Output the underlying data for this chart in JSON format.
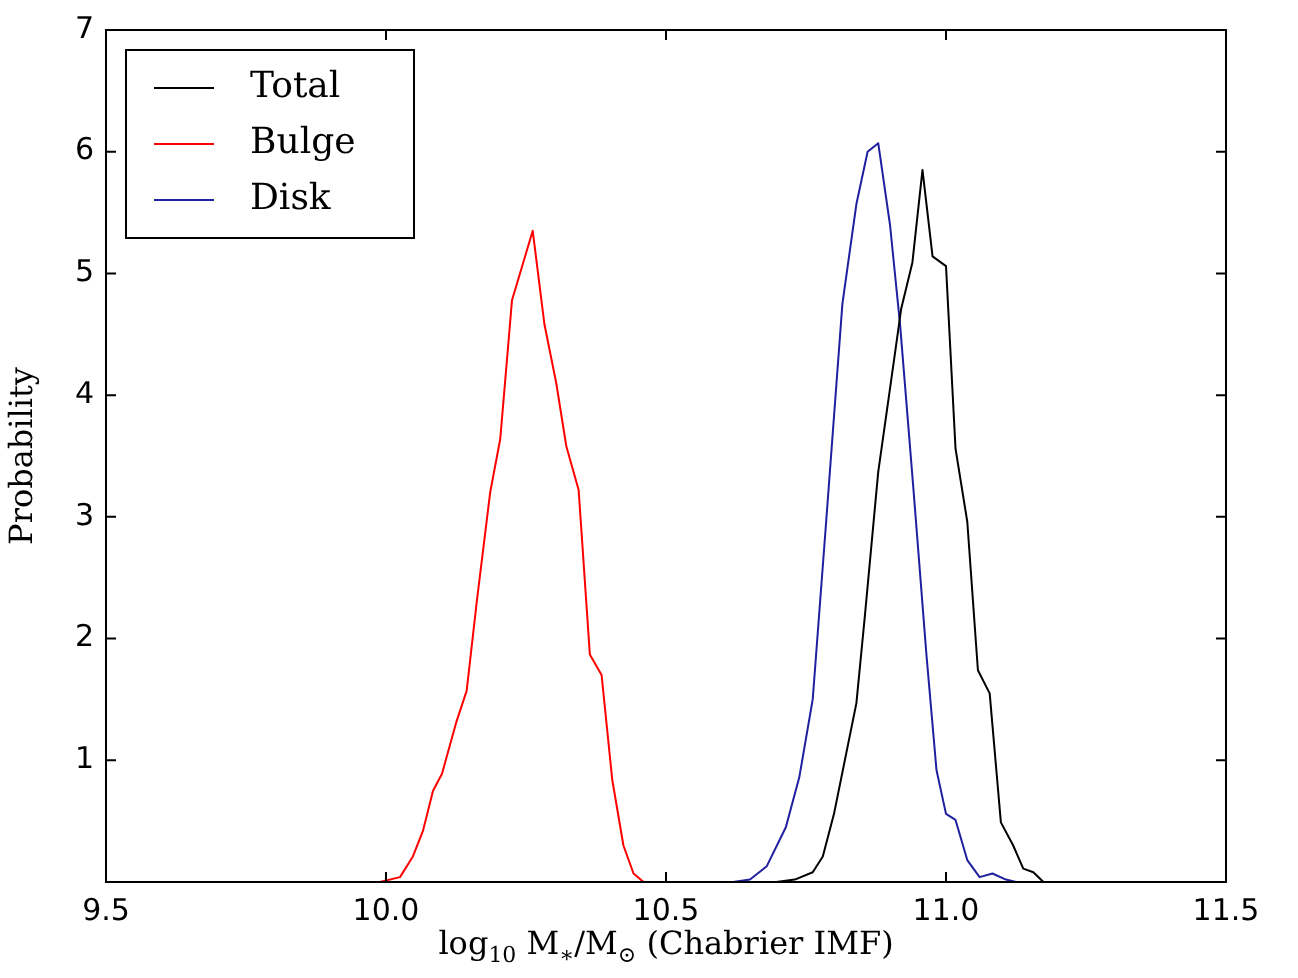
{
  "chart_data": {
    "type": "line",
    "xlabel": "log$_{10}$ M$_{∗}$/M$_{⊙}$ (Chabrier IMF)",
    "ylabel": "Probability",
    "xlim": [
      9.5,
      11.5
    ],
    "ylim": [
      0,
      7
    ],
    "xticks": [
      {
        "value": 9.5,
        "label": "9.5"
      },
      {
        "value": 10,
        "label": "10.0"
      },
      {
        "value": 10.5,
        "label": "10.5"
      },
      {
        "value": 11,
        "label": "11.0"
      },
      {
        "value": 11.5,
        "label": "11.5"
      }
    ],
    "yticks": [
      1,
      2,
      3,
      4,
      5,
      6,
      7
    ],
    "grid": false,
    "legend": "top left",
    "marker": "none",
    "line_style": "solid",
    "series": [
      {
        "name": "Total",
        "color": "#000000",
        "x": [
          10.697,
          10.73,
          10.762,
          10.78,
          10.8,
          10.84,
          10.855,
          10.879,
          10.91,
          10.92,
          10.94,
          10.958,
          10.976,
          11.0,
          11.017,
          11.038,
          11.057,
          11.078,
          11.098,
          11.12,
          11.138,
          11.156,
          11.174
        ],
        "values": [
          0,
          0.02,
          0.08,
          0.21,
          0.56,
          1.47,
          2.18,
          3.37,
          4.38,
          4.71,
          5.09,
          5.85,
          5.14,
          5.06,
          3.56,
          2.96,
          1.74,
          1.55,
          0.49,
          0.3,
          0.11,
          0.08,
          0
        ]
      },
      {
        "name": "Bulge",
        "color": "#ff0000",
        "x": [
          9.989,
          10.025,
          10.048,
          10.066,
          10.084,
          10.1,
          10.126,
          10.144,
          10.162,
          10.186,
          10.204,
          10.225,
          10.262,
          10.283,
          10.304,
          10.322,
          10.344,
          10.364,
          10.385,
          10.404,
          10.424,
          10.442,
          10.46
        ],
        "values": [
          0,
          0.04,
          0.21,
          0.42,
          0.75,
          0.89,
          1.32,
          1.57,
          2.3,
          3.2,
          3.64,
          4.78,
          5.35,
          4.58,
          4.1,
          3.58,
          3.22,
          1.87,
          1.7,
          0.84,
          0.3,
          0.07,
          0
        ]
      },
      {
        "name": "Disk",
        "color": "#1f1f9f",
        "x": [
          10.62,
          10.65,
          10.68,
          10.714,
          10.738,
          10.762,
          10.785,
          10.815,
          10.84,
          10.86,
          10.879,
          10.9,
          10.918,
          10.942,
          10.965,
          10.983,
          11.0,
          11.017,
          11.038,
          11.06,
          11.083,
          11.107,
          11.125
        ],
        "values": [
          0,
          0.02,
          0.13,
          0.45,
          0.86,
          1.5,
          2.9,
          4.75,
          5.57,
          6.0,
          6.07,
          5.4,
          4.58,
          3.22,
          1.87,
          0.92,
          0.56,
          0.51,
          0.18,
          0.04,
          0.07,
          0.02,
          0
        ]
      }
    ]
  }
}
